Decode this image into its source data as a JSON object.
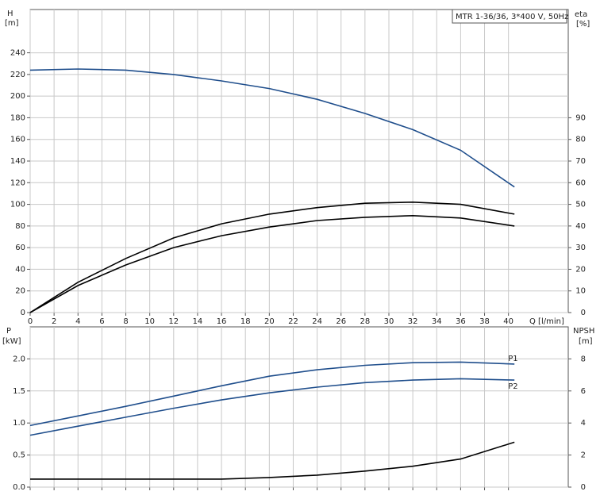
{
  "chart_data": [
    {
      "type": "line",
      "legend_text": "MTR 1-36/36, 3*400 V, 50Hz",
      "ylabel": "H",
      "yunit": "[m]",
      "y2label": "eta",
      "y2unit": "[%]",
      "xlabel": "Q [l/min]",
      "x": [
        0,
        4,
        8,
        12,
        16,
        20,
        24,
        28,
        32,
        36,
        40.5
      ],
      "xlim": [
        0,
        45
      ],
      "xticks": [
        0,
        2,
        4,
        6,
        8,
        10,
        12,
        14,
        16,
        18,
        20,
        22,
        24,
        26,
        28,
        30,
        32,
        34,
        36,
        38,
        40
      ],
      "ylim": [
        0,
        280
      ],
      "yticks": [
        0,
        20,
        40,
        60,
        80,
        100,
        120,
        140,
        160,
        180,
        200,
        220,
        240
      ],
      "y2lim": [
        0,
        140
      ],
      "y2ticks": [
        0,
        10,
        20,
        30,
        40,
        50,
        60,
        70,
        80,
        90
      ],
      "grid": true,
      "series": [
        {
          "color": "#1f4e8c",
          "values": [
            224,
            225,
            224,
            220,
            214,
            207,
            197,
            184,
            169,
            150,
            116
          ]
        },
        {
          "color": "#000000",
          "axis": "y2",
          "values": [
            0,
            14,
            25,
            34.5,
            41,
            45.5,
            48.5,
            50.5,
            51,
            50,
            45.5
          ]
        },
        {
          "color": "#000000",
          "axis": "y2",
          "values": [
            0,
            12.5,
            22,
            30,
            35.5,
            39.5,
            42.5,
            44,
            44.8,
            43.7,
            40
          ]
        }
      ]
    },
    {
      "type": "line",
      "ylabel": "P",
      "yunit": "[kW]",
      "y2label": "NPSH",
      "y2unit": "[m]",
      "x": [
        0,
        4,
        8,
        12,
        16,
        20,
        24,
        28,
        32,
        36,
        40.5
      ],
      "xlim": [
        0,
        45
      ],
      "ylim": [
        0,
        2.5
      ],
      "yticks": [
        {
          "value": 0,
          "label": "0.0"
        },
        0.5,
        {
          "value": 1,
          "label": "1.0"
        },
        1.5,
        {
          "value": 2,
          "label": "2.0"
        }
      ],
      "y2lim": [
        0,
        10
      ],
      "y2ticks": [
        0,
        2,
        4,
        6,
        8
      ],
      "grid": true,
      "series": [
        {
          "name": "P1",
          "color": "#1f4e8c",
          "values": [
            0.96,
            1.11,
            1.26,
            1.42,
            1.58,
            1.73,
            1.83,
            1.9,
            1.94,
            1.95,
            1.92
          ]
        },
        {
          "name": "P2",
          "color": "#1f4e8c",
          "values": [
            0.81,
            0.95,
            1.09,
            1.23,
            1.36,
            1.47,
            1.56,
            1.63,
            1.67,
            1.69,
            1.67
          ]
        },
        {
          "color": "#000000",
          "axis": "y2",
          "values": [
            0.5,
            0.5,
            0.5,
            0.5,
            0.5,
            0.6,
            0.75,
            1.0,
            1.3,
            1.75,
            2.8
          ]
        }
      ]
    }
  ]
}
